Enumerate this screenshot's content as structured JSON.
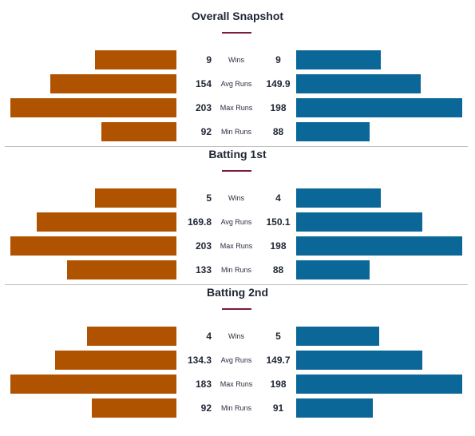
{
  "colors": {
    "left": "#b05300",
    "right": "#0b6797",
    "accent": "#7b1a3d"
  },
  "chart_data": [
    {
      "type": "bar",
      "title": "Overall Snapshot",
      "categories": [
        "Wins",
        "Avg Runs",
        "Max Runs",
        "Min Runs"
      ],
      "series": [
        {
          "values": [
            9,
            154,
            203,
            92
          ],
          "labels": [
            "9",
            "154",
            "203",
            "92"
          ],
          "bar_fraction": [
            0.49,
            0.76,
            1.0,
            0.45
          ]
        },
        {
          "values": [
            9,
            149.9,
            198,
            88
          ],
          "labels": [
            "9",
            "149.9",
            "198",
            "88"
          ],
          "bar_fraction": [
            0.51,
            0.75,
            1.0,
            0.44
          ]
        }
      ]
    },
    {
      "type": "bar",
      "title": "Batting 1st",
      "categories": [
        "Wins",
        "Avg Runs",
        "Max Runs",
        "Min Runs"
      ],
      "series": [
        {
          "values": [
            5,
            169.8,
            203,
            133
          ],
          "labels": [
            "5",
            "169.8",
            "203",
            "133"
          ],
          "bar_fraction": [
            0.49,
            0.84,
            1.0,
            0.66
          ]
        },
        {
          "values": [
            4,
            150.1,
            198,
            88
          ],
          "labels": [
            "4",
            "150.1",
            "198",
            "88"
          ],
          "bar_fraction": [
            0.51,
            0.76,
            1.0,
            0.44
          ]
        }
      ]
    },
    {
      "type": "bar",
      "title": "Batting 2nd",
      "categories": [
        "Wins",
        "Avg Runs",
        "Max Runs",
        "Min Runs"
      ],
      "series": [
        {
          "values": [
            4,
            134.3,
            183,
            92
          ],
          "labels": [
            "4",
            "134.3",
            "183",
            "92"
          ],
          "bar_fraction": [
            0.54,
            0.73,
            1.0,
            0.51
          ]
        },
        {
          "values": [
            5,
            149.7,
            198,
            91
          ],
          "labels": [
            "5",
            "149.7",
            "198",
            "91"
          ],
          "bar_fraction": [
            0.5,
            0.76,
            1.0,
            0.46
          ]
        }
      ]
    }
  ]
}
